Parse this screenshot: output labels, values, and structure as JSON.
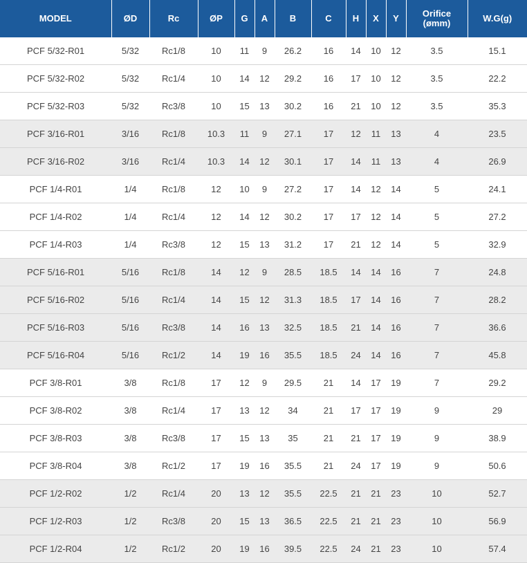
{
  "table": {
    "headers": [
      "MODEL",
      "ØD",
      "Rc",
      "ØP",
      "G",
      "A",
      "B",
      "C",
      "H",
      "X",
      "Y",
      "Orifice\n(ømm)",
      "W.G(g)"
    ],
    "rows": [
      {
        "shade": false,
        "cells": [
          "PCF 5/32-R01",
          "5/32",
          "Rc1/8",
          "10",
          "11",
          "9",
          "26.2",
          "16",
          "14",
          "10",
          "12",
          "3.5",
          "15.1"
        ]
      },
      {
        "shade": false,
        "cells": [
          "PCF 5/32-R02",
          "5/32",
          "Rc1/4",
          "10",
          "14",
          "12",
          "29.2",
          "16",
          "17",
          "10",
          "12",
          "3.5",
          "22.2"
        ]
      },
      {
        "shade": false,
        "cells": [
          "PCF 5/32-R03",
          "5/32",
          "Rc3/8",
          "10",
          "15",
          "13",
          "30.2",
          "16",
          "21",
          "10",
          "12",
          "3.5",
          "35.3"
        ]
      },
      {
        "shade": true,
        "cells": [
          "PCF 3/16-R01",
          "3/16",
          "Rc1/8",
          "10.3",
          "11",
          "9",
          "27.1",
          "17",
          "12",
          "11",
          "13",
          "4",
          "23.5"
        ]
      },
      {
        "shade": true,
        "cells": [
          "PCF 3/16-R02",
          "3/16",
          "Rc1/4",
          "10.3",
          "14",
          "12",
          "30.1",
          "17",
          "14",
          "11",
          "13",
          "4",
          "26.9"
        ]
      },
      {
        "shade": false,
        "cells": [
          "PCF 1/4-R01",
          "1/4",
          "Rc1/8",
          "12",
          "10",
          "9",
          "27.2",
          "17",
          "14",
          "12",
          "14",
          "5",
          "24.1"
        ]
      },
      {
        "shade": false,
        "cells": [
          "PCF 1/4-R02",
          "1/4",
          "Rc1/4",
          "12",
          "14",
          "12",
          "30.2",
          "17",
          "17",
          "12",
          "14",
          "5",
          "27.2"
        ]
      },
      {
        "shade": false,
        "cells": [
          "PCF 1/4-R03",
          "1/4",
          "Rc3/8",
          "12",
          "15",
          "13",
          "31.2",
          "17",
          "21",
          "12",
          "14",
          "5",
          "32.9"
        ]
      },
      {
        "shade": true,
        "cells": [
          "PCF 5/16-R01",
          "5/16",
          "Rc1/8",
          "14",
          "12",
          "9",
          "28.5",
          "18.5",
          "14",
          "14",
          "16",
          "7",
          "24.8"
        ]
      },
      {
        "shade": true,
        "cells": [
          "PCF 5/16-R02",
          "5/16",
          "Rc1/4",
          "14",
          "15",
          "12",
          "31.3",
          "18.5",
          "17",
          "14",
          "16",
          "7",
          "28.2"
        ]
      },
      {
        "shade": true,
        "cells": [
          "PCF 5/16-R03",
          "5/16",
          "Rc3/8",
          "14",
          "16",
          "13",
          "32.5",
          "18.5",
          "21",
          "14",
          "16",
          "7",
          "36.6"
        ]
      },
      {
        "shade": true,
        "cells": [
          "PCF 5/16-R04",
          "5/16",
          "Rc1/2",
          "14",
          "19",
          "16",
          "35.5",
          "18.5",
          "24",
          "14",
          "16",
          "7",
          "45.8"
        ]
      },
      {
        "shade": false,
        "cells": [
          "PCF 3/8-R01",
          "3/8",
          "Rc1/8",
          "17",
          "12",
          "9",
          "29.5",
          "21",
          "14",
          "17",
          "19",
          "7",
          "29.2"
        ]
      },
      {
        "shade": false,
        "cells": [
          "PCF 3/8-R02",
          "3/8",
          "Rc1/4",
          "17",
          "13",
          "12",
          "34",
          "21",
          "17",
          "17",
          "19",
          "9",
          "29"
        ]
      },
      {
        "shade": false,
        "cells": [
          "PCF 3/8-R03",
          "3/8",
          "Rc3/8",
          "17",
          "15",
          "13",
          "35",
          "21",
          "21",
          "17",
          "19",
          "9",
          "38.9"
        ]
      },
      {
        "shade": false,
        "cells": [
          "PCF 3/8-R04",
          "3/8",
          "Rc1/2",
          "17",
          "19",
          "16",
          "35.5",
          "21",
          "24",
          "17",
          "19",
          "9",
          "50.6"
        ]
      },
      {
        "shade": true,
        "cells": [
          "PCF 1/2-R02",
          "1/2",
          "Rc1/4",
          "20",
          "13",
          "12",
          "35.5",
          "22.5",
          "21",
          "21",
          "23",
          "10",
          "52.7"
        ]
      },
      {
        "shade": true,
        "cells": [
          "PCF 1/2-R03",
          "1/2",
          "Rc3/8",
          "20",
          "15",
          "13",
          "36.5",
          "22.5",
          "21",
          "21",
          "23",
          "10",
          "56.9"
        ]
      },
      {
        "shade": true,
        "cells": [
          "PCF 1/2-R04",
          "1/2",
          "Rc1/2",
          "20",
          "19",
          "16",
          "39.5",
          "22.5",
          "24",
          "21",
          "23",
          "10",
          "57.4"
        ]
      }
    ]
  },
  "colors": {
    "header_bg": "#1c5b9c",
    "header_text": "#ffffff",
    "row_shade": "#ebebeb",
    "row_plain": "#ffffff",
    "cell_text": "#444444",
    "divider": "#d4d4d4"
  }
}
